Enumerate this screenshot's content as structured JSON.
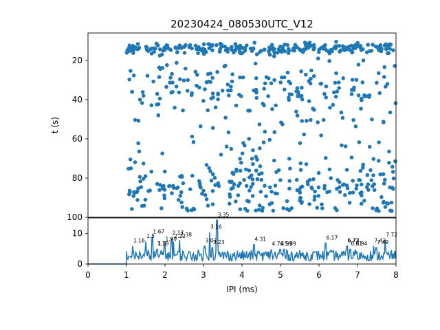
{
  "chart_data": [
    {
      "type": "scatter",
      "title": "20230424_080530UTC_V12",
      "xlabel": "",
      "ylabel": "t (s)",
      "xlim": [
        0,
        8
      ],
      "ylim": [
        100,
        6
      ],
      "y_inverted": true,
      "yticks": [
        "20",
        "40",
        "60",
        "80",
        "100"
      ],
      "marker_color": "#1f77b4",
      "bands": [
        {
          "t_center": 14,
          "t_spread": 1.3,
          "count": 260
        },
        {
          "t_center": 32,
          "t_spread": 7,
          "count": 150
        },
        {
          "t_center": 57,
          "t_spread": 12,
          "count": 90
        },
        {
          "t_center": 86,
          "t_spread": 7,
          "count": 250
        }
      ],
      "ipi_range_ms": [
        1.0,
        8.0
      ]
    },
    {
      "type": "line",
      "title": "",
      "xlabel": "IPI (ms)",
      "ylabel": "",
      "xlim": [
        0,
        8
      ],
      "ylim": [
        0,
        15
      ],
      "xticks": [
        "0",
        "1",
        "2",
        "3",
        "4",
        "5",
        "6",
        "7",
        "8"
      ],
      "yticks": [
        "0",
        "10"
      ],
      "line_color": "#1f77b4",
      "peak_labels": [
        {
          "x": 1.16,
          "y": 7.0,
          "label": "1.16"
        },
        {
          "x": 1.5,
          "y": 8.5,
          "label": "1.5"
        },
        {
          "x": 1.67,
          "y": 10.0,
          "label": "1.67"
        },
        {
          "x": 1.78,
          "y": 6.0,
          "label": "1.78"
        },
        {
          "x": 1.8,
          "y": 6.0,
          "label": "1.8"
        },
        {
          "x": 1.99,
          "y": 7.5,
          "label": "1.99"
        },
        {
          "x": 2.17,
          "y": 9.5,
          "label": "2.17"
        },
        {
          "x": 2.22,
          "y": 8.5,
          "label": "2.22"
        },
        {
          "x": 2.38,
          "y": 9.0,
          "label": "2.38"
        },
        {
          "x": 3.03,
          "y": 7.0,
          "label": "3.03"
        },
        {
          "x": 3.16,
          "y": 11.5,
          "label": "3.16"
        },
        {
          "x": 3.23,
          "y": 6.5,
          "label": "3.23"
        },
        {
          "x": 3.35,
          "y": 15.5,
          "label": "3.35"
        },
        {
          "x": 4.31,
          "y": 7.5,
          "label": "4.31"
        },
        {
          "x": 4.76,
          "y": 6.0,
          "label": "4.76"
        },
        {
          "x": 4.99,
          "y": 6.0,
          "label": "4.99"
        },
        {
          "x": 5.09,
          "y": 6.0,
          "label": "5.09"
        },
        {
          "x": 6.17,
          "y": 8.0,
          "label": "6.17"
        },
        {
          "x": 6.72,
          "y": 7.0,
          "label": "6.72"
        },
        {
          "x": 6.73,
          "y": 7.0,
          "label": "6.73"
        },
        {
          "x": 6.81,
          "y": 6.0,
          "label": "6.81"
        },
        {
          "x": 6.94,
          "y": 6.0,
          "label": "6.94"
        },
        {
          "x": 7.42,
          "y": 7.0,
          "label": "7.42"
        },
        {
          "x": 7.49,
          "y": 6.5,
          "label": "7.49"
        },
        {
          "x": 7.72,
          "y": 9.0,
          "label": "7.72"
        }
      ]
    }
  ]
}
